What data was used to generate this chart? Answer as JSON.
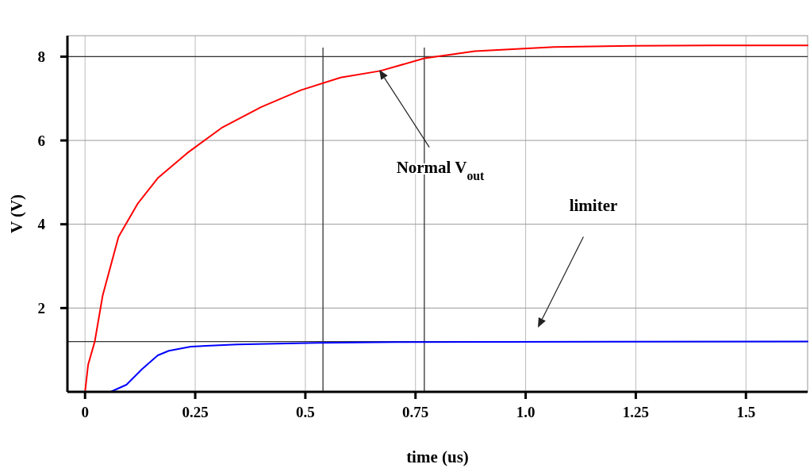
{
  "chart_data": {
    "type": "line",
    "xlabel": "time (us)",
    "ylabel": "V (V)",
    "xlim": [
      -0.04,
      1.64
    ],
    "ylim": [
      0,
      8.5
    ],
    "xticks": [
      0,
      0.25,
      0.5,
      0.75,
      {
        "value": 1,
        "label": "1.0"
      },
      1.25,
      1.5
    ],
    "yticks": [
      2,
      4,
      6,
      8
    ],
    "grid": true,
    "marker": "none",
    "line_style": "solid",
    "series": [
      {
        "color": "#ff0000",
        "x": [
          0,
          0.007,
          0.022,
          0.04,
          0.076,
          0.12,
          0.165,
          0.232,
          0.31,
          0.4,
          0.49,
          0.58,
          0.67,
          0.77,
          0.885,
          1.065,
          1.245,
          1.42,
          1.64
        ],
        "values": [
          0,
          0.65,
          1.2,
          2.3,
          3.7,
          4.5,
          5.1,
          5.7,
          6.3,
          6.8,
          7.2,
          7.5,
          7.66,
          7.96,
          8.13,
          8.23,
          8.26,
          8.27,
          8.27
        ]
      },
      {
        "color": "#0000ff",
        "x": [
          0,
          0.058,
          0.094,
          0.13,
          0.165,
          0.19,
          0.24,
          0.345,
          0.525,
          0.705,
          1.64
        ],
        "values": [
          0,
          0,
          0.17,
          0.55,
          0.87,
          0.98,
          1.08,
          1.13,
          1.17,
          1.19,
          1.2
        ]
      }
    ],
    "ref_lines": [
      {
        "axis": "y",
        "value": 8,
        "color": "#333333"
      },
      {
        "axis": "y",
        "value": 1.2,
        "color": "#333333"
      },
      {
        "axis": "x",
        "value": 0.77,
        "color": "#333333"
      },
      {
        "axis": "x",
        "value": 0.54,
        "color": "#333333"
      }
    ],
    "annotations": [
      "Normal V$_{out}$",
      "limiter"
    ]
  }
}
